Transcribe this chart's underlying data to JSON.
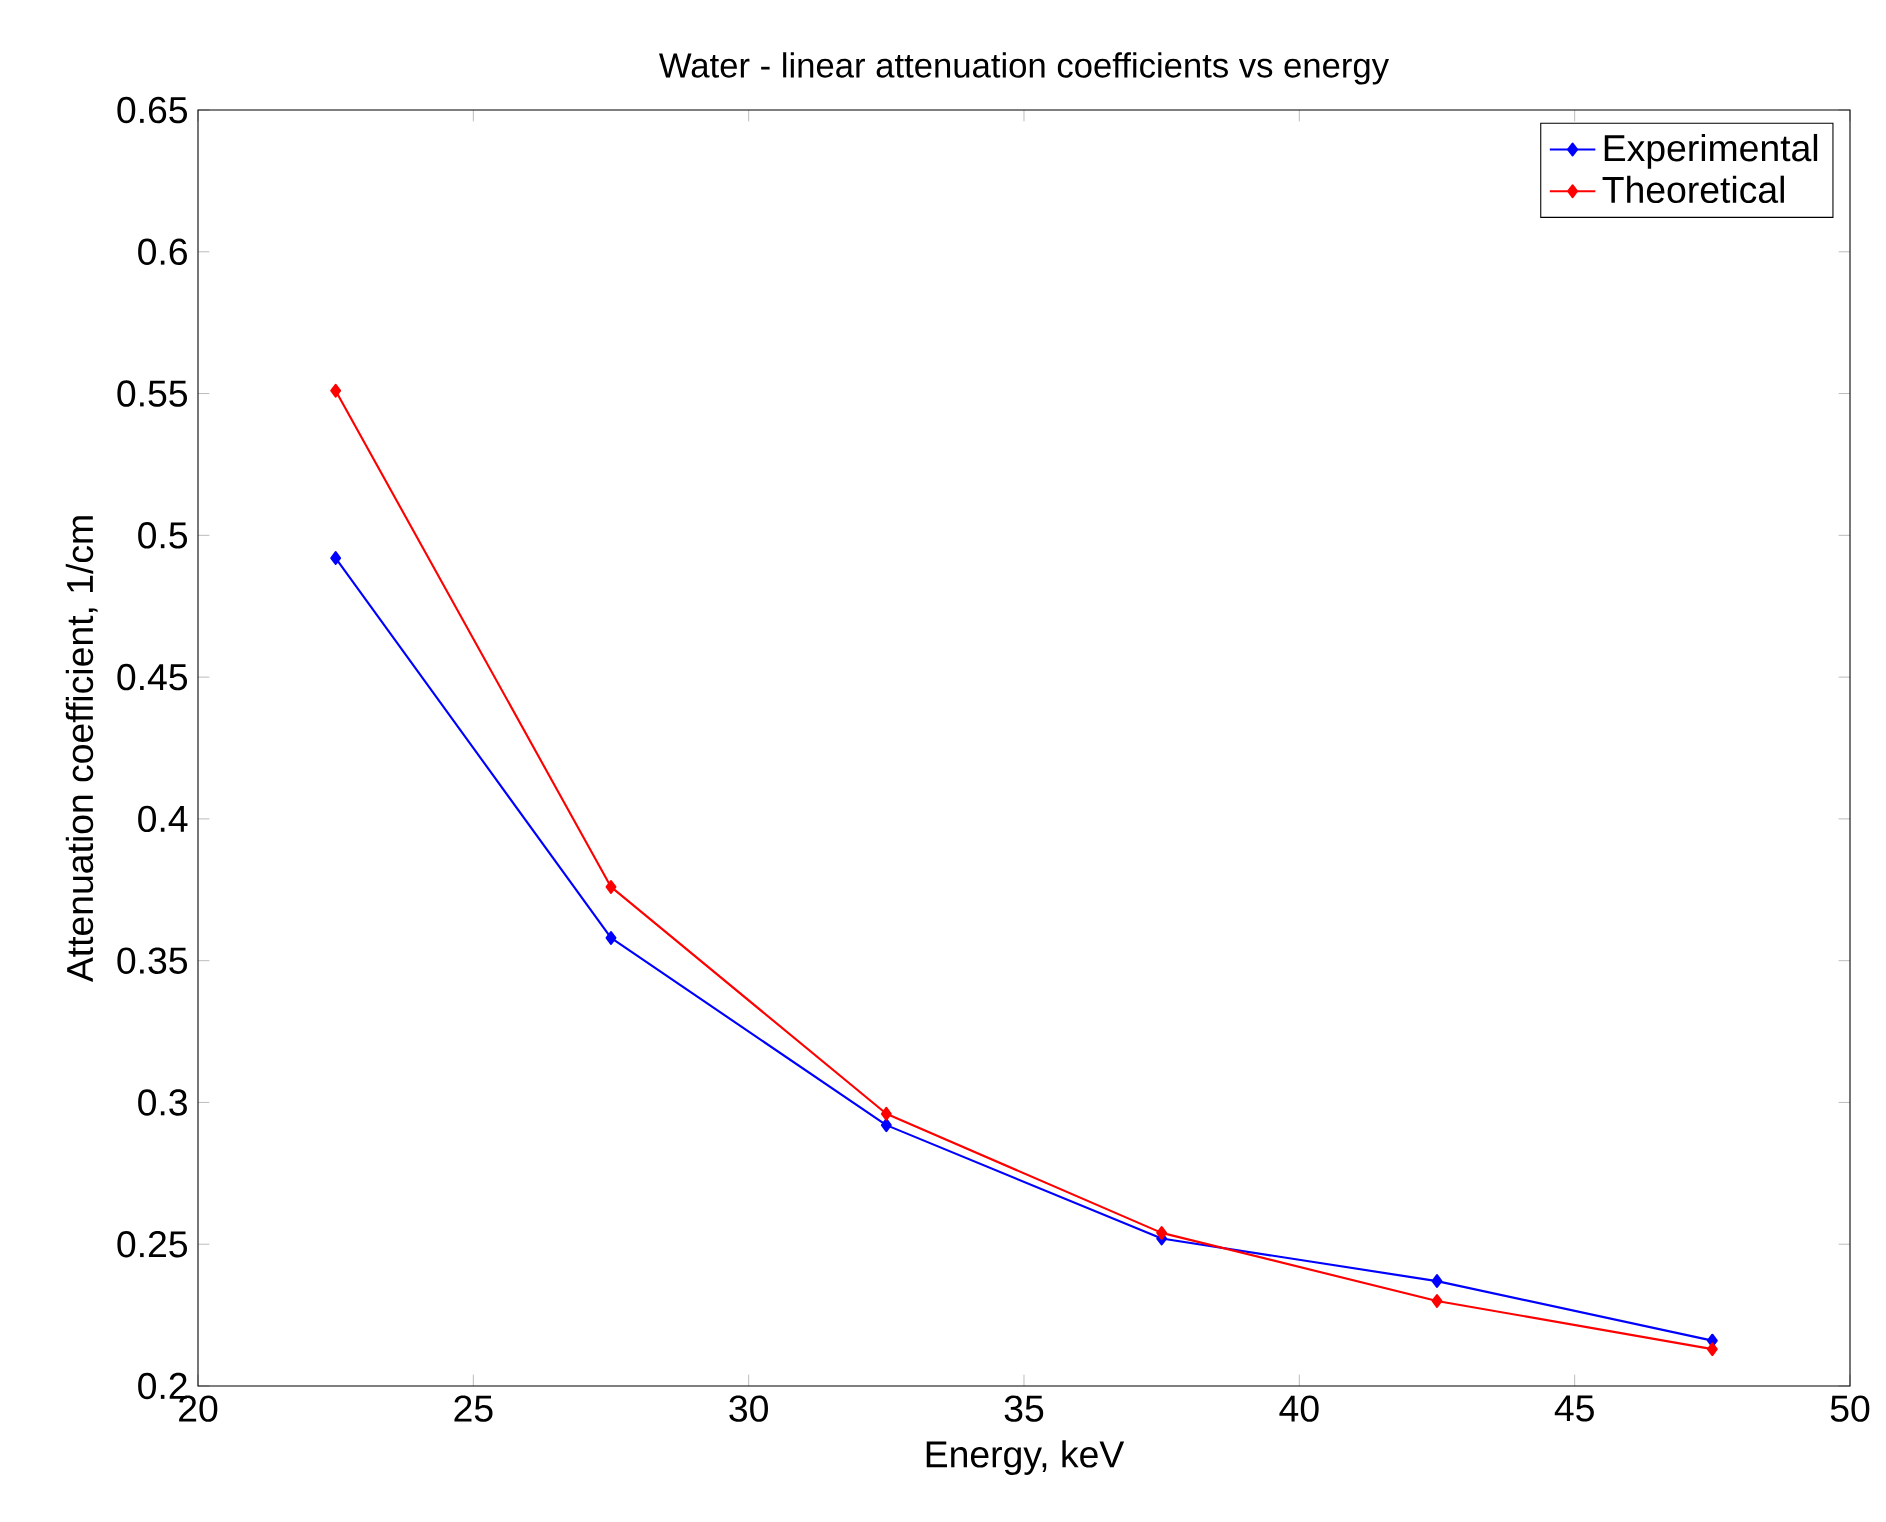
{
  "chart_data": {
    "type": "line",
    "title": "Water - linear attenuation coefficients vs energy",
    "xlabel": "Energy, keV",
    "ylabel": "Attenuation coefficient, 1/cm",
    "x": [
      22.5,
      27.5,
      32.5,
      37.5,
      42.5,
      47.5
    ],
    "series": [
      {
        "name": "Experimental",
        "color": "#0000ff",
        "values": [
          0.492,
          0.358,
          0.292,
          0.252,
          0.237,
          0.216
        ]
      },
      {
        "name": "Theoretical",
        "color": "#ff0000",
        "values": [
          0.551,
          0.376,
          0.296,
          0.254,
          0.23,
          0.213
        ]
      }
    ],
    "xlim": [
      20,
      50
    ],
    "xticks": [
      20,
      25,
      30,
      35,
      40,
      45,
      50
    ],
    "ylim": [
      0.2,
      0.65
    ],
    "yticks": [
      0.2,
      0.25,
      0.3,
      0.35,
      0.4,
      0.45,
      0.5,
      0.55,
      0.6,
      0.65
    ],
    "grid": false,
    "legend": "top right",
    "marker": "diamond",
    "line_style": "solid"
  }
}
